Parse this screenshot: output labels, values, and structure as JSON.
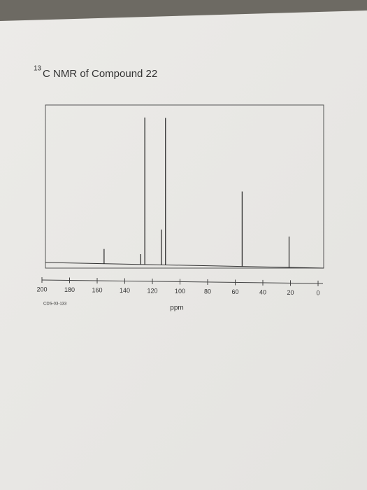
{
  "chart_data": {
    "type": "stem",
    "title_superscript": "13",
    "title": "C NMR of Compound 22",
    "sample_id": "CDS-03-133",
    "x_label": "ppm",
    "x": [
      155,
      128.5,
      125.5,
      113.5,
      110.5,
      55,
      21
    ],
    "values": [
      10,
      7,
      100,
      24,
      100,
      51,
      21
    ],
    "color": "#222222",
    "xlim": [
      200,
      0
    ],
    "xticks": [
      200,
      180,
      160,
      140,
      120,
      100,
      80,
      60,
      40,
      20,
      0
    ],
    "ylim": [
      0,
      100
    ]
  }
}
